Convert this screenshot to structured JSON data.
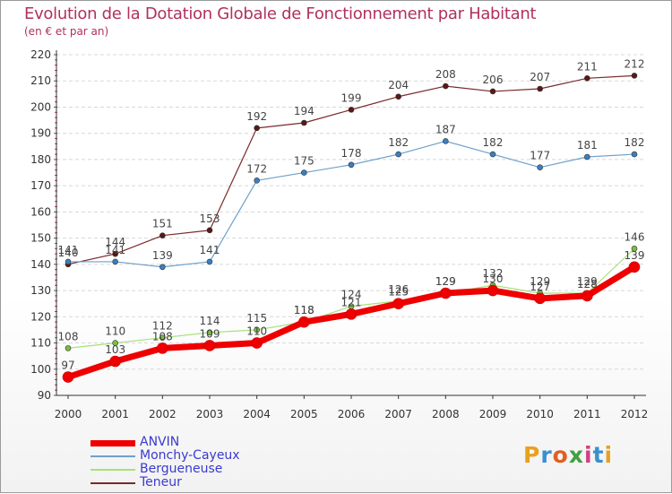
{
  "chart_data": {
    "type": "line",
    "title": "Evolution de la Dotation Globale de Fonctionnement par Habitant",
    "subtitle": "(en € et par an)",
    "xlabel": "",
    "ylabel": "",
    "categories": [
      "2000",
      "2001",
      "2002",
      "2003",
      "2004",
      "2005",
      "2006",
      "2007",
      "2008",
      "2009",
      "2010",
      "2011",
      "2012"
    ],
    "ylim": [
      90,
      220
    ],
    "yticks": [
      90,
      100,
      110,
      120,
      130,
      140,
      150,
      160,
      170,
      180,
      190,
      200,
      210,
      220
    ],
    "grid": true,
    "legend_position": "bottom-left",
    "series": [
      {
        "name": "Teneur",
        "color": "#7a2a2a",
        "marker": "#5a1818",
        "width": 1.2,
        "values": [
          140,
          144,
          151,
          153,
          192,
          194,
          199,
          204,
          208,
          206,
          207,
          211,
          212
        ]
      },
      {
        "name": "Monchy-Cayeux",
        "color": "#6ea0cc",
        "marker": "#3a7fc0",
        "width": 1.2,
        "values": [
          141,
          141,
          139,
          141,
          172,
          175,
          178,
          182,
          187,
          182,
          177,
          181,
          182
        ]
      },
      {
        "name": "Bergueneuse",
        "color": "#a8e07a",
        "marker": "#78c040",
        "width": 1.2,
        "values": [
          108,
          110,
          112,
          114,
          115,
          118,
          124,
          126,
          129,
          132,
          129,
          129,
          146
        ]
      },
      {
        "name": "ANVIN",
        "color": "#ee0000",
        "marker": "#ee0000",
        "width": 7,
        "values": [
          97,
          103,
          108,
          109,
          110,
          118,
          121,
          125,
          129,
          130,
          127,
          128,
          139
        ]
      }
    ],
    "legend_order": [
      "ANVIN",
      "Monchy-Cayeux",
      "Bergueneuse",
      "Teneur"
    ]
  },
  "logo_text": "Proxiti",
  "logo_colors": [
    "#e8a020",
    "#3a8fd0",
    "#e06020",
    "#40a040",
    "#d04080",
    "#3a8fd0",
    "#e8a020"
  ]
}
